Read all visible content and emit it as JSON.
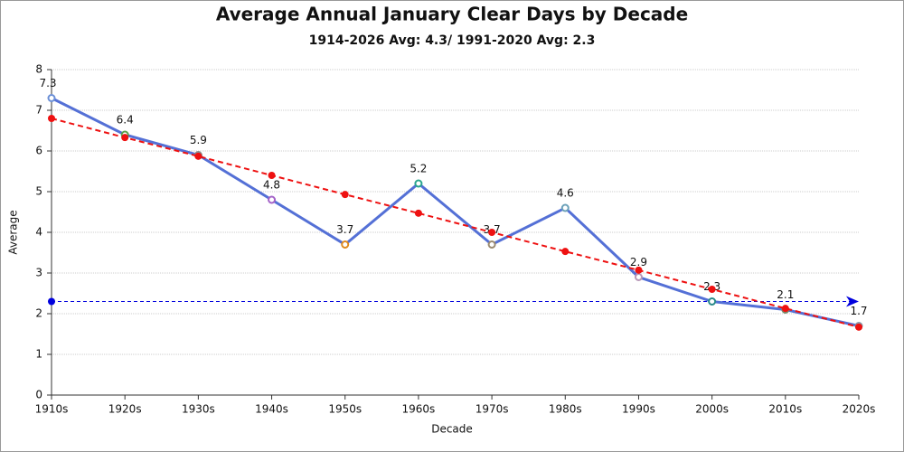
{
  "chart_data": {
    "type": "line",
    "title": "Average Annual January Clear Days by Decade",
    "subtitle": "1914-2026 Avg: 4.3/ 1991-2020 Avg: 2.3",
    "x_label": "Decade",
    "y_label": "Average",
    "categories": [
      "1910s",
      "1920s",
      "1930s",
      "1940s",
      "1950s",
      "1960s",
      "1970s",
      "1980s",
      "1990s",
      "2000s",
      "2010s",
      "2020s"
    ],
    "series": [
      {
        "color": "#5470d6",
        "values": [
          7.3,
          6.4,
          5.9,
          4.8,
          3.7,
          5.2,
          3.7,
          4.6,
          2.9,
          2.3,
          2.1,
          1.7
        ],
        "marker_colors": [
          "#6b8fd6",
          "#5aa04a",
          "#8a8a8a",
          "#a463c8",
          "#e08a1e",
          "#2aa58f",
          "#9a8a70",
          "#6aa0b8",
          "#b898b8",
          "#2a8a8a",
          "#7a8a6a",
          "#8a9aaa"
        ],
        "data_labels": true,
        "dashed": false
      },
      {
        "color": "#ee1111",
        "values": [
          6.8,
          6.33,
          5.87,
          5.4,
          4.93,
          4.47,
          4.0,
          3.53,
          3.07,
          2.6,
          2.13,
          1.67
        ],
        "data_labels": false,
        "dashed": true
      }
    ],
    "reference_line": {
      "value": 2.3,
      "color": "#0000dd"
    },
    "ylim": [
      0,
      8
    ],
    "yticks": [
      0,
      1,
      2,
      3,
      4,
      5,
      6,
      7,
      8
    ],
    "grid": true
  }
}
